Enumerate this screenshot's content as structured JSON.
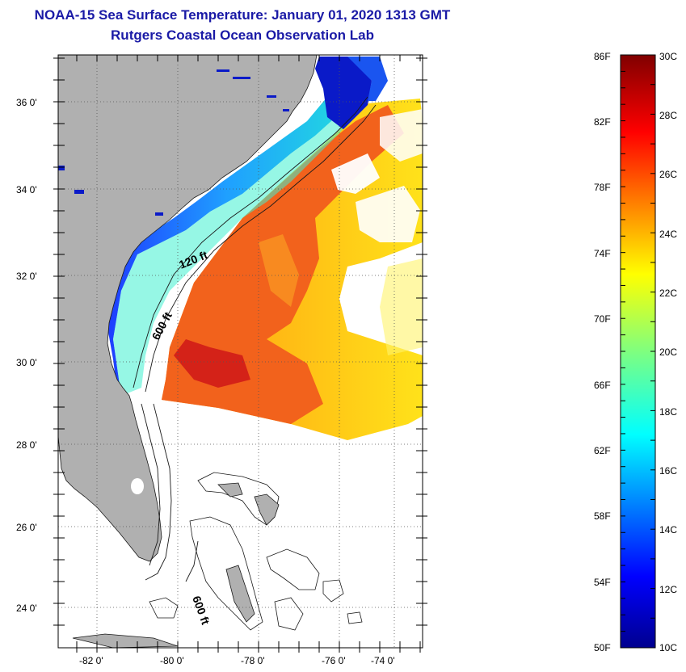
{
  "header": {
    "title_line1": "NOAA-15 Sea Surface Temperature:  January 01, 2020 1313 GMT",
    "title_line2": "Rutgers Coastal Ocean Observation Lab"
  },
  "map": {
    "lat_labels": [
      "36 0'",
      "34 0'",
      "32 0'",
      "30 0'",
      "28 0'",
      "26 0'",
      "24 0'"
    ],
    "lon_labels": [
      "-82 0'",
      "-80 0'",
      "-78 0'",
      "-76 0'",
      "-74 0'"
    ],
    "contour_labels": {
      "c120": "120 ft",
      "c600a": "600 ft",
      "c600b": "600 ft"
    },
    "colors": {
      "land": "#b0b0b0",
      "water_nodata": "#ffffff",
      "gulf_stream": "#ee3a10",
      "shelf_cold": "#1e4fff",
      "coast_deep": "#0a0fb8"
    }
  },
  "colorbar": {
    "f_labels": [
      "86F",
      "82F",
      "78F",
      "74F",
      "70F",
      "66F",
      "62F",
      "58F",
      "54F",
      "50F"
    ],
    "c_labels": [
      "30C",
      "28C",
      "26C",
      "24C",
      "22C",
      "20C",
      "18C",
      "16C",
      "14C",
      "12C",
      "10C"
    ],
    "f_range": [
      50,
      86
    ],
    "c_range": [
      10,
      30
    ]
  }
}
